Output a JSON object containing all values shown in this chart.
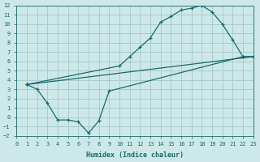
{
  "xlabel": "Humidex (Indice chaleur)",
  "bg_color": "#cce8e8",
  "grid_color": "#aacccc",
  "line_color": "#1a6b6b",
  "xlim": [
    0,
    23
  ],
  "ylim": [
    -2,
    12
  ],
  "xticks": [
    0,
    1,
    2,
    3,
    4,
    5,
    6,
    7,
    8,
    9,
    10,
    11,
    12,
    13,
    14,
    15,
    16,
    17,
    18,
    19,
    20,
    21,
    22,
    23
  ],
  "yticks": [
    -2,
    -1,
    0,
    1,
    2,
    3,
    4,
    5,
    6,
    7,
    8,
    9,
    10,
    11,
    12
  ],
  "line1_x": [
    1,
    2,
    3,
    4,
    5,
    6,
    7,
    8,
    9,
    22,
    23
  ],
  "line1_y": [
    3.5,
    3.0,
    1.5,
    -0.3,
    -0.3,
    -0.5,
    -1.7,
    -0.4,
    2.8,
    6.5,
    6.5
  ],
  "line2_x": [
    1,
    23
  ],
  "line2_y": [
    3.5,
    6.5
  ],
  "line3_x": [
    1,
    10,
    11,
    12,
    13,
    14,
    15,
    16,
    17,
    18,
    19,
    20,
    21,
    22,
    23
  ],
  "line3_y": [
    3.5,
    5.5,
    6.5,
    7.5,
    8.5,
    10.2,
    10.8,
    11.5,
    11.7,
    12.0,
    11.3,
    10.0,
    8.3,
    6.5,
    6.5
  ]
}
